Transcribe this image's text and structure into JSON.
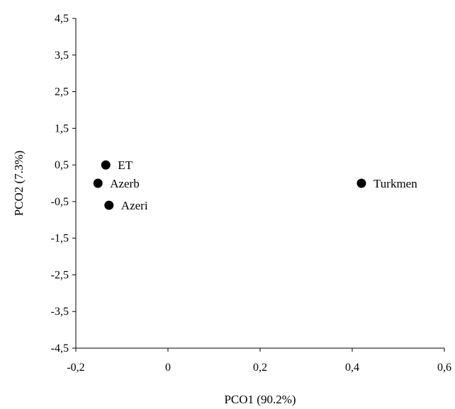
{
  "chart_data": {
    "type": "scatter",
    "title": "",
    "xlabel": "PCO1 (90.2%)",
    "ylabel": "PCO2 (7.3%)",
    "xlim": [
      -0.2,
      0.6
    ],
    "ylim": [
      -4.5,
      4.5
    ],
    "x_ticks": [
      -0.2,
      0,
      0.2,
      0.4,
      0.6
    ],
    "x_tick_labels": [
      "-0,2",
      "0",
      "0,2",
      "0,4",
      "0,6"
    ],
    "y_ticks": [
      4.5,
      3.5,
      2.5,
      1.5,
      0.5,
      -0.5,
      -1.5,
      -2.5,
      -3.5,
      -4.5
    ],
    "y_tick_labels": [
      "4,5",
      "3,5",
      "2,5",
      "1,5",
      "0,5",
      "-0,5",
      "-1,5",
      "-2,5",
      "-3,5",
      "-4,5"
    ],
    "grid": false,
    "marker_color": "#000000",
    "points": [
      {
        "label": "ET",
        "x": -0.135,
        "y": 0.5
      },
      {
        "label": "Azerb",
        "x": -0.152,
        "y": 0.0
      },
      {
        "label": "Azeri",
        "x": -0.128,
        "y": -0.6
      },
      {
        "label": "Turkmen",
        "x": 0.42,
        "y": 0.0
      }
    ]
  }
}
